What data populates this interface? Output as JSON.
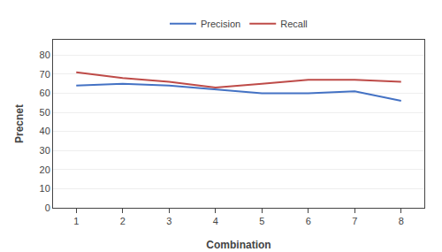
{
  "chart_data": {
    "type": "line",
    "x": [
      1,
      2,
      3,
      4,
      5,
      6,
      7,
      8
    ],
    "series": [
      {
        "name": "Precision",
        "color": "#4472C4",
        "values": [
          64,
          65,
          64,
          62,
          60,
          60,
          61,
          56
        ]
      },
      {
        "name": "Recall",
        "color": "#BE4B48",
        "values": [
          71,
          68,
          66,
          63,
          65,
          67,
          67,
          66
        ]
      }
    ],
    "xlabel": "Combination",
    "ylabel": "Precnet",
    "xlim": [
      0.5,
      8.5
    ],
    "xticks": [
      1,
      2,
      3,
      4,
      5,
      6,
      7,
      8
    ],
    "ylim": [
      0,
      88
    ],
    "yticks": [
      0,
      10,
      20,
      30,
      40,
      50,
      60,
      70,
      80
    ],
    "grid": "y",
    "legend": "top"
  }
}
